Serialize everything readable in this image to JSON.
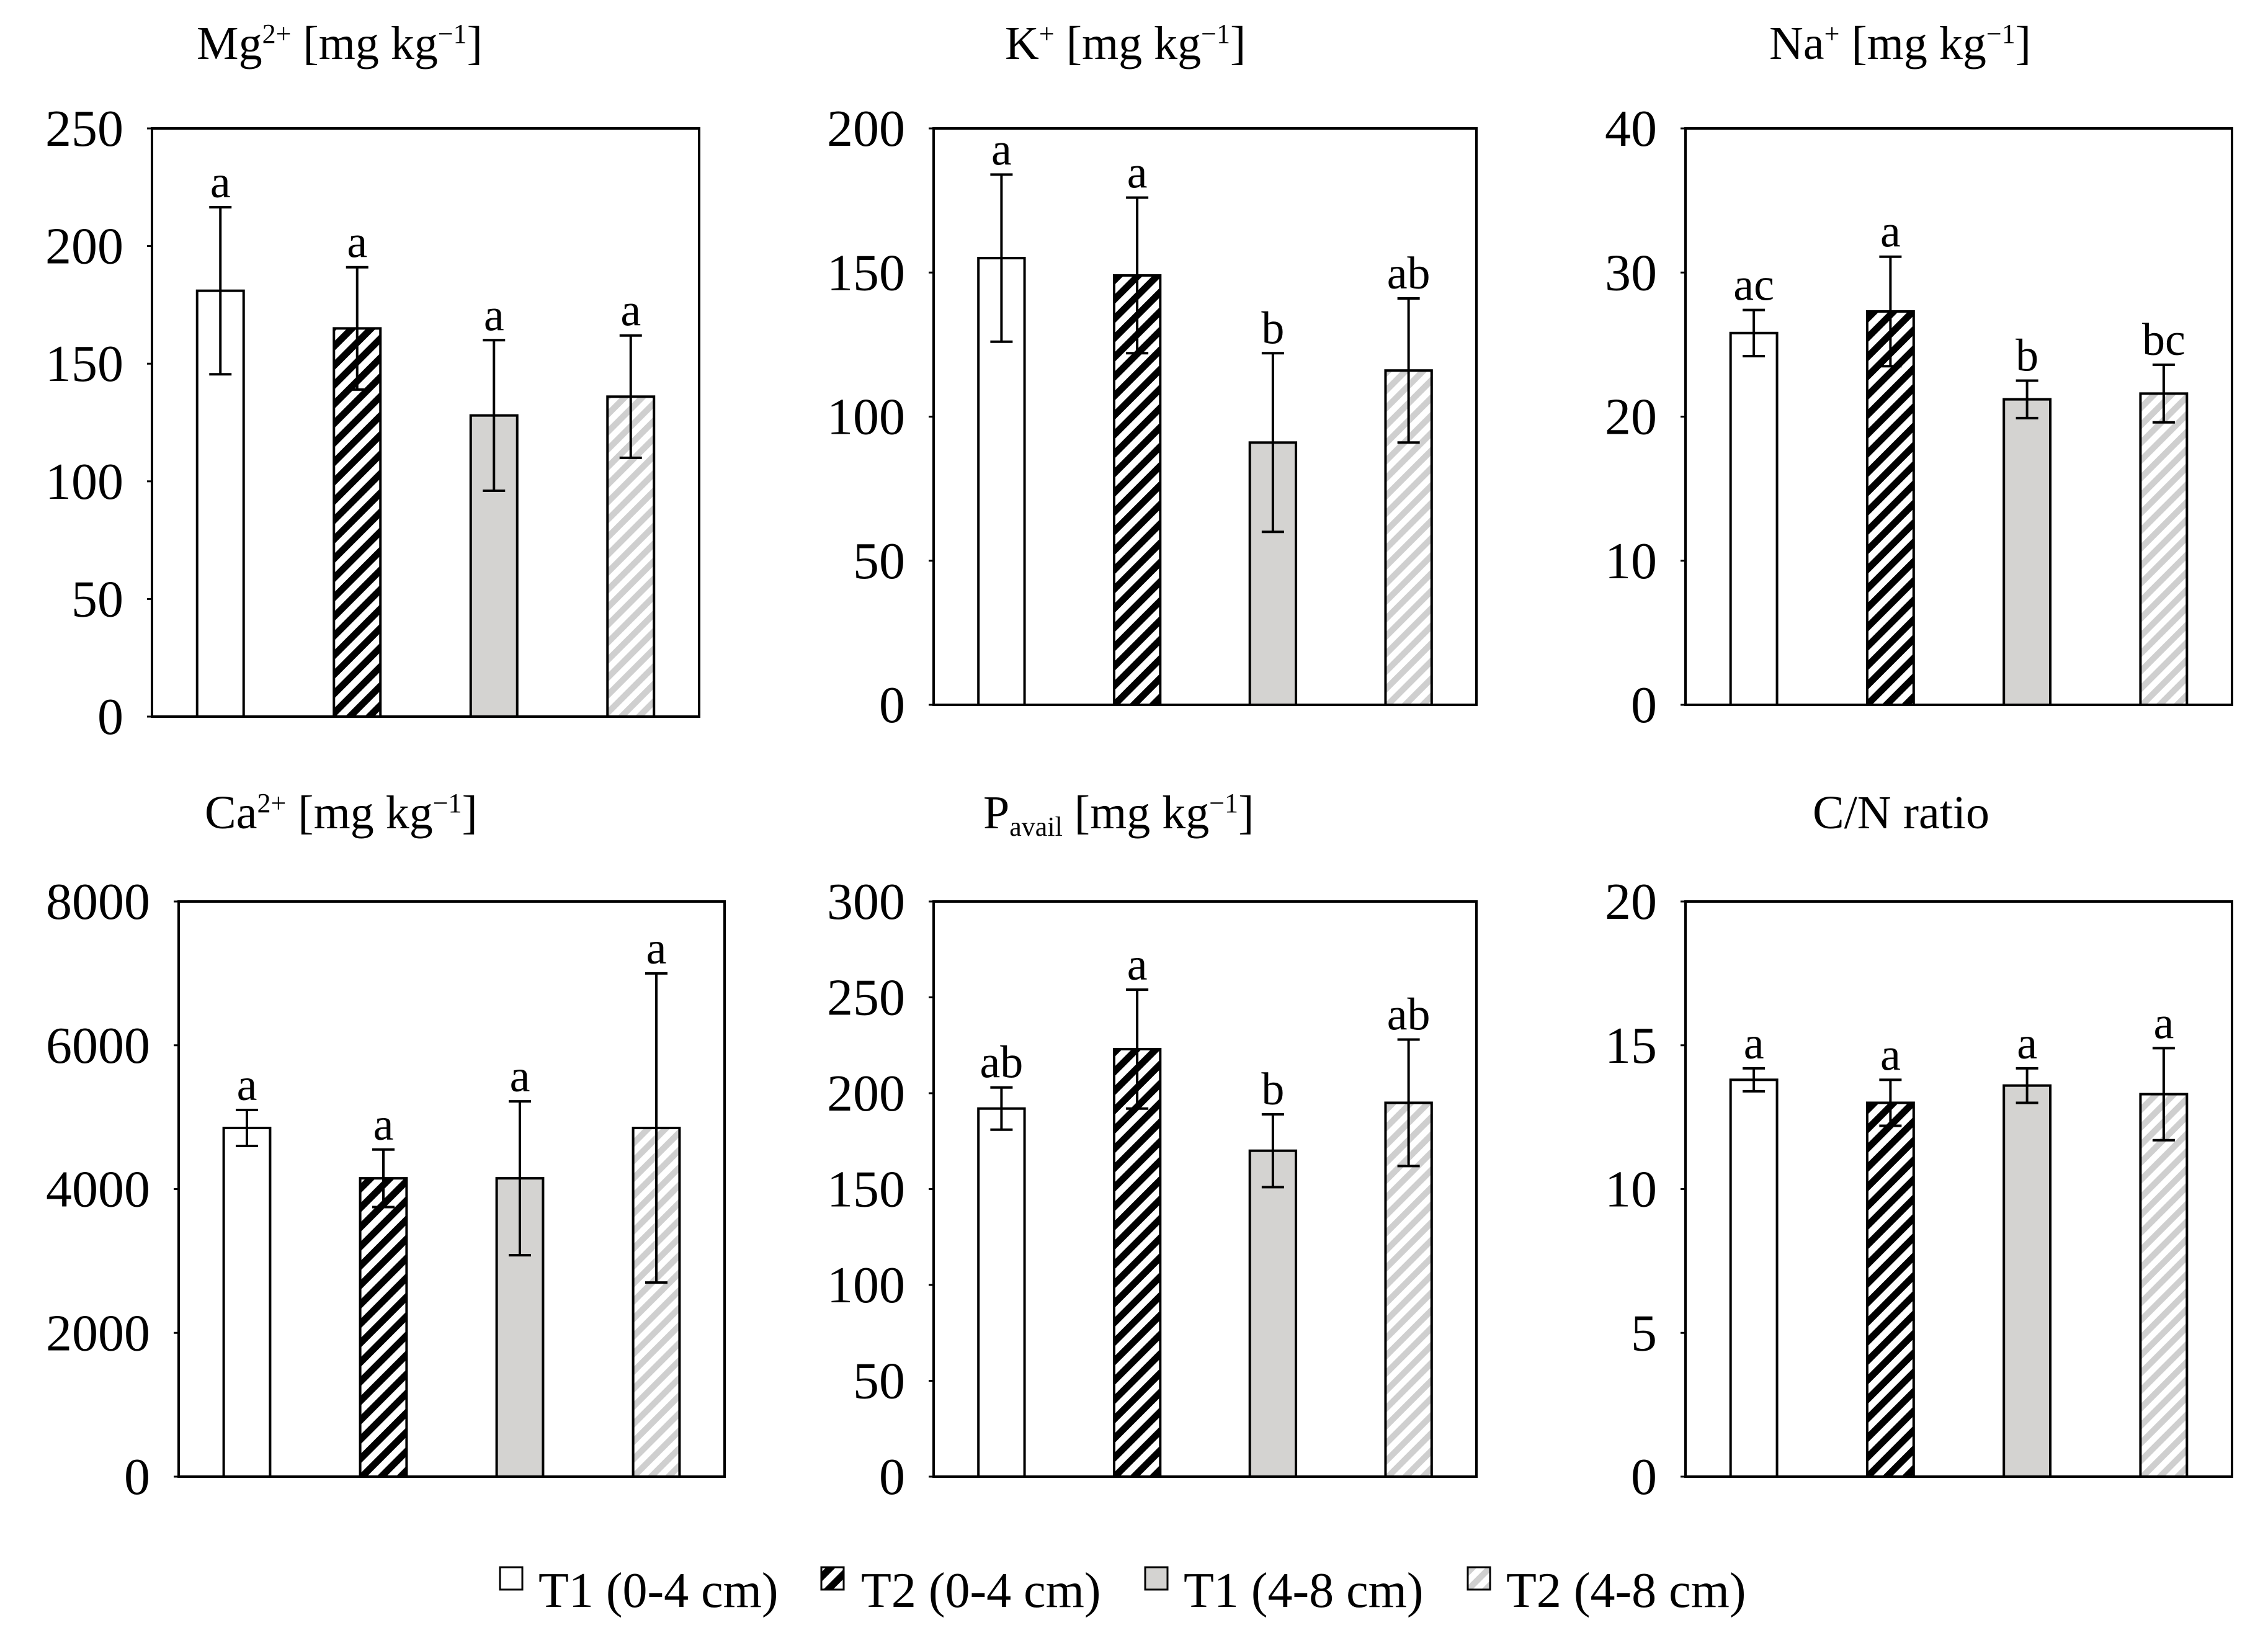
{
  "chart_data": [
    {
      "type": "bar",
      "title": {
        "base": "Mg",
        "sup": "2+",
        "unit_pre": " [mg kg",
        "unit_sup": "−1",
        "unit_post": "]"
      },
      "ylim": [
        0,
        250
      ],
      "yticks": [
        "0",
        "50",
        "100",
        "150",
        "200",
        "250"
      ],
      "yticks_values": [
        0,
        50,
        100,
        150,
        200,
        250
      ],
      "categories": [
        "T1 (0-4 cm)",
        "T2 (0-4 cm)",
        "T1 (4-8 cm)",
        "T2 (4-8 cm)"
      ],
      "values": [
        181,
        165,
        128,
        136
      ],
      "errors": [
        35.5,
        26,
        32,
        26
      ],
      "letters": [
        "a",
        "a",
        "a",
        "a"
      ]
    },
    {
      "type": "bar",
      "title": {
        "base": "K",
        "sup": "+",
        "unit_pre": " [mg kg",
        "unit_sup": "−1",
        "unit_post": "]"
      },
      "ylim": [
        0,
        200
      ],
      "yticks": [
        "0",
        "50",
        "100",
        "150",
        "200"
      ],
      "yticks_values": [
        0,
        50,
        100,
        150,
        200
      ],
      "categories": [
        "T1 (0-4 cm)",
        "T2 (0-4 cm)",
        "T1 (4-8 cm)",
        "T2 (4-8 cm)"
      ],
      "values": [
        155,
        149,
        91,
        116
      ],
      "errors": [
        29,
        27,
        31,
        25
      ],
      "letters": [
        "a",
        "a",
        "b",
        "ab"
      ]
    },
    {
      "type": "bar",
      "title": {
        "base": "Na",
        "sup": "+",
        "unit_pre": " [mg kg",
        "unit_sup": "−1",
        "unit_post": "]"
      },
      "ylim": [
        0,
        40
      ],
      "yticks": [
        "0",
        "10",
        "20",
        "30",
        "40"
      ],
      "yticks_values": [
        0,
        10,
        20,
        30,
        40
      ],
      "categories": [
        "T1 (0-4 cm)",
        "T2 (0-4 cm)",
        "T1 (4-8 cm)",
        "T2 (4-8 cm)"
      ],
      "values": [
        25.8,
        27.3,
        21.2,
        21.6
      ],
      "errors": [
        1.6,
        3.8,
        1.3,
        2
      ],
      "letters": [
        "ac",
        "a",
        "b",
        "bc"
      ]
    },
    {
      "type": "bar",
      "title": {
        "base": "Ca",
        "sup": "2+",
        "unit_pre": " [mg kg",
        "unit_sup": "−1",
        "unit_post": "]"
      },
      "ylim": [
        0,
        8000
      ],
      "yticks": [
        "0",
        "2000",
        "4000",
        "6000",
        "8000"
      ],
      "yticks_values": [
        0,
        2000,
        4000,
        6000,
        8000
      ],
      "categories": [
        "T1 (0-4 cm)",
        "T2 (0-4 cm)",
        "T1 (4-8 cm)",
        "T2 (4-8 cm)"
      ],
      "values": [
        4850,
        4150,
        4150,
        4850
      ],
      "errors": [
        250,
        400,
        1070,
        2150
      ],
      "letters": [
        "a",
        "a",
        "a",
        "a"
      ]
    },
    {
      "type": "bar",
      "title": {
        "base": "P",
        "sub": "avail",
        "unit_pre": " [mg kg",
        "unit_sup": "−1",
        "unit_post": "]"
      },
      "ylim": [
        0,
        300
      ],
      "yticks": [
        "0",
        "50",
        "100",
        "150",
        "200",
        "250",
        "300"
      ],
      "yticks_values": [
        0,
        50,
        100,
        150,
        200,
        250,
        300
      ],
      "categories": [
        "T1 (0-4 cm)",
        "T2 (0-4 cm)",
        "T1 (4-8 cm)",
        "T2 (4-8 cm)"
      ],
      "values": [
        192,
        223,
        170,
        195
      ],
      "errors": [
        11,
        31,
        19,
        33
      ],
      "letters": [
        "ab",
        "a",
        "b",
        "ab"
      ]
    },
    {
      "type": "bar",
      "title": {
        "base": "C/N ratio"
      },
      "ylim": [
        0,
        20
      ],
      "yticks": [
        "0",
        "5",
        "10",
        "15",
        "20"
      ],
      "yticks_values": [
        0,
        5,
        10,
        15,
        20
      ],
      "categories": [
        "T1 (0-4 cm)",
        "T2 (0-4 cm)",
        "T1 (4-8 cm)",
        "T2 (4-8 cm)"
      ],
      "values": [
        13.8,
        13,
        13.6,
        13.3
      ],
      "errors": [
        0.4,
        0.8,
        0.6,
        1.6
      ],
      "letters": [
        "a",
        "a",
        "a",
        "a"
      ]
    }
  ],
  "legend": {
    "items": [
      "T1 (0-4 cm)",
      "T2 (0-4 cm)",
      "T1 (4-8 cm)",
      "T2 (4-8 cm)"
    ]
  },
  "colors": {
    "axis": "#000000",
    "t1_top": "#ffffff",
    "t2_top_stripe": "#000000",
    "t1_bottom": "#d4d3d1",
    "t2_bottom_stripe": "#cfcfcf"
  }
}
